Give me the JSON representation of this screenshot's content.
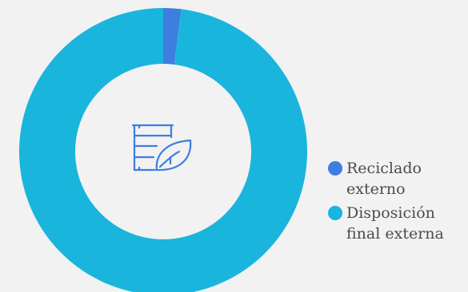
{
  "chart_data": {
    "type": "pie",
    "categories": [
      "Reciclado externo",
      "Disposición final externa"
    ],
    "values": [
      2,
      98
    ],
    "colors": [
      "#3d7ee0",
      "#1ab5dd"
    ],
    "center_icon": "barrel-leaf-icon",
    "legend_position": "right"
  },
  "legend": {
    "items": [
      {
        "line1": "Reciclado",
        "line2": "externo",
        "color": "#3d7ee0"
      },
      {
        "line1": "Disposición",
        "line2": "final externa",
        "color": "#1ab5dd"
      }
    ]
  },
  "colors": {
    "background": "#f2f2f2",
    "icon": "#3d7ee0"
  }
}
